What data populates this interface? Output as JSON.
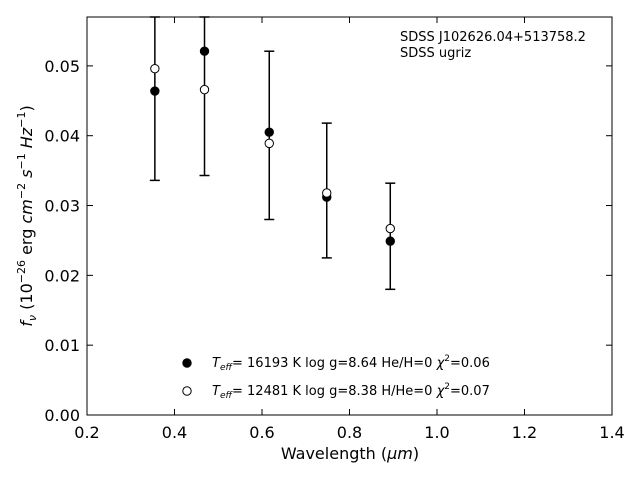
{
  "chart_data": {
    "type": "scatter",
    "xlabel_prefix": "Wavelength (",
    "xlabel_unit": "μm",
    "xlabel_suffix": ")",
    "ylabel": {
      "var": "f",
      "sub": "ν",
      "open": " (10",
      "exp1": "−26",
      "units": " erg ",
      "cm": "cm",
      "exp2": "−2",
      "s": " s",
      "exp3": "−1",
      "hz": " Hz",
      "exp4": "−1",
      "close": ")"
    },
    "xlim": [
      0.2,
      1.4
    ],
    "ylim": [
      0.0,
      0.057
    ],
    "xticks": [
      "0.2",
      "0.4",
      "0.6",
      "0.8",
      "1.0",
      "1.2",
      "1.4"
    ],
    "yticks": [
      "0.00",
      "0.01",
      "0.02",
      "0.03",
      "0.04",
      "0.05"
    ],
    "annotation_lines": [
      "SDSS J102626.04+513758.2",
      "SDSS ugriz"
    ],
    "observed": {
      "x": [
        0.3551,
        0.4686,
        0.6166,
        0.748,
        0.8932
      ],
      "y": [
        0.0496,
        0.0466,
        0.0389,
        0.0318,
        0.0267
      ],
      "yerr_low": [
        0.0336,
        0.0343,
        0.028,
        0.0225,
        0.018
      ],
      "yerr_high": [
        0.057,
        0.057,
        0.0521,
        0.0418,
        0.0332
      ]
    },
    "series": [
      {
        "marker": "filled-circle",
        "x": [
          0.3551,
          0.4686,
          0.6166,
          0.748,
          0.8932
        ],
        "y": [
          0.0464,
          0.0521,
          0.0405,
          0.0312,
          0.0249
        ],
        "legend": {
          "t_label": "T",
          "t_sub": "eff",
          "text": "= 16193 K  log g=8.64  He/H=0  ",
          "chi": "χ",
          "chi_sup": "2",
          "chi_val": "=0.06"
        }
      },
      {
        "marker": "open-circle",
        "x": [
          0.3551,
          0.4686,
          0.6166,
          0.748,
          0.8932
        ],
        "y": [
          0.0496,
          0.0466,
          0.0389,
          0.0318,
          0.0267
        ],
        "legend": {
          "t_label": "T",
          "t_sub": "eff",
          "text": "= 12481 K  log g=8.38  H/He=0  ",
          "chi": "χ",
          "chi_sup": "2",
          "chi_val": "=0.07"
        }
      }
    ],
    "colors": {
      "axes": "#000000",
      "background": "#ffffff",
      "marker": "#000000"
    },
    "grid": false
  }
}
